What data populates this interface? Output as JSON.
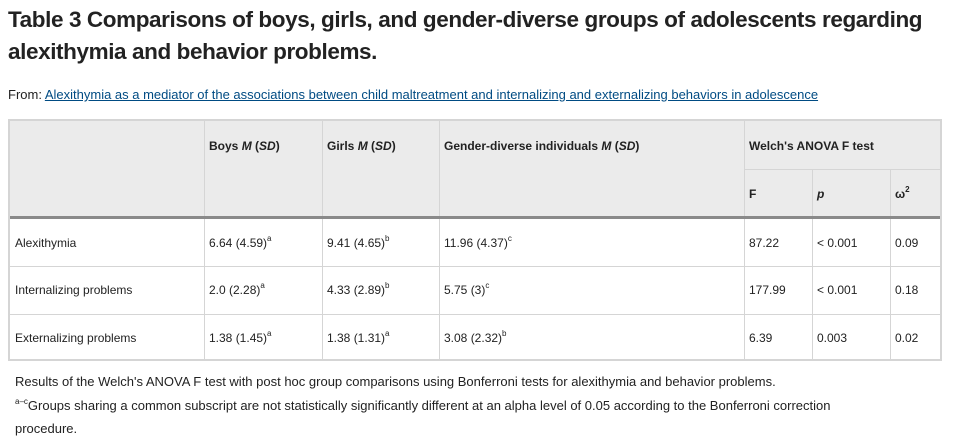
{
  "title": "Table 3 Comparisons of boys, girls, and gender-diverse groups of adolescents regarding alexithymia and behavior problems.",
  "from_label": "From: ",
  "from_link": "Alexithymia as a mediator of the associations between child maltreatment and internalizing and externalizing behaviors in adolescence",
  "headers": {
    "boys": "Boys",
    "girls": "Girls",
    "gender_diverse": "Gender-diverse individuals",
    "m": "M",
    "sd": "SD",
    "welch": "Welch's ANOVA F test",
    "f": "F",
    "p": "p",
    "omega": "ω",
    "omega_exp": "2"
  },
  "rows": [
    {
      "label": "Alexithymia",
      "boys": "6.64 (4.59)",
      "boys_sup": "a",
      "girls": "9.41 (4.65)",
      "girls_sup": "b",
      "gd": "11.96 (4.37)",
      "gd_sup": "c",
      "f": "87.22",
      "p": "< 0.001",
      "omega": "0.09"
    },
    {
      "label": "Internalizing problems",
      "boys": "2.0 (2.28)",
      "boys_sup": "a",
      "girls": "4.33 (2.89)",
      "girls_sup": "b",
      "gd": "5.75 (3)",
      "gd_sup": "c",
      "f": "177.99",
      "p": "< 0.001",
      "omega": "0.18"
    },
    {
      "label": "Externalizing problems",
      "boys": "1.38 (1.45)",
      "boys_sup": "a",
      "girls": "1.38 (1.31)",
      "girls_sup": "a",
      "gd": "3.08 (2.32)",
      "gd_sup": "b",
      "f": "6.39",
      "p": "0.003",
      "omega": "0.02"
    }
  ],
  "footnotes": {
    "line1": "Results of the Welch's ANOVA F test with post hoc group comparisons using Bonferroni tests for alexithymia and behavior problems.",
    "sup": "a–c",
    "line2": "Groups sharing a common subscript are not statistically significantly different at an alpha level of 0.05 according to the Bonferroni correction",
    "line3": "procedure."
  }
}
